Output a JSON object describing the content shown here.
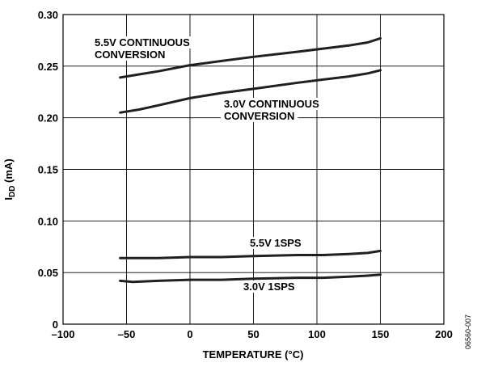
{
  "chart_data": {
    "type": "line",
    "title": "",
    "xlabel": "TEMPERATURE (°C)",
    "ylabel_main": "I",
    "ylabel_sub": "DD",
    "ylabel_unit": " (mA)",
    "xlim": [
      -100,
      200
    ],
    "ylim": [
      0,
      0.3
    ],
    "grid": true,
    "x_ticks": [
      -100,
      -50,
      0,
      50,
      100,
      150,
      200
    ],
    "x_tick_labels": [
      "–100",
      "–50",
      "0",
      "50",
      "100",
      "150",
      "200"
    ],
    "y_ticks": [
      0,
      0.05,
      0.1,
      0.15,
      0.2,
      0.25,
      0.3
    ],
    "y_tick_labels": [
      "0",
      "0.05",
      "0.10",
      "0.15",
      "0.20",
      "0.25",
      "0.30"
    ],
    "series": [
      {
        "key": "s1",
        "label_lines": [
          "5.5V CONTINUOUS",
          "CONVERSION"
        ],
        "x": [
          -55,
          -40,
          -25,
          0,
          25,
          50,
          85,
          105,
          125,
          140,
          150
        ],
        "y": [
          0.239,
          0.242,
          0.245,
          0.251,
          0.255,
          0.259,
          0.264,
          0.267,
          0.27,
          0.273,
          0.277
        ]
      },
      {
        "key": "s2",
        "label_lines": [
          "3.0V CONTINUOUS",
          "CONVERSION"
        ],
        "x": [
          -55,
          -40,
          -25,
          0,
          25,
          50,
          85,
          105,
          125,
          140,
          150
        ],
        "y": [
          0.205,
          0.208,
          0.212,
          0.219,
          0.224,
          0.228,
          0.234,
          0.237,
          0.24,
          0.243,
          0.246
        ]
      },
      {
        "key": "s3",
        "label_lines": [
          "5.5V 1SPS"
        ],
        "x": [
          -55,
          -25,
          0,
          25,
          50,
          85,
          105,
          125,
          140,
          150
        ],
        "y": [
          0.064,
          0.064,
          0.065,
          0.065,
          0.066,
          0.067,
          0.067,
          0.068,
          0.069,
          0.071
        ]
      },
      {
        "key": "s4",
        "label_lines": [
          "3.0V 1SPS"
        ],
        "x": [
          -55,
          -45,
          -25,
          0,
          25,
          50,
          85,
          105,
          125,
          140,
          150
        ],
        "y": [
          0.042,
          0.041,
          0.042,
          0.043,
          0.043,
          0.044,
          0.045,
          0.045,
          0.046,
          0.047,
          0.048
        ]
      }
    ]
  },
  "figure_id": "06560-007"
}
